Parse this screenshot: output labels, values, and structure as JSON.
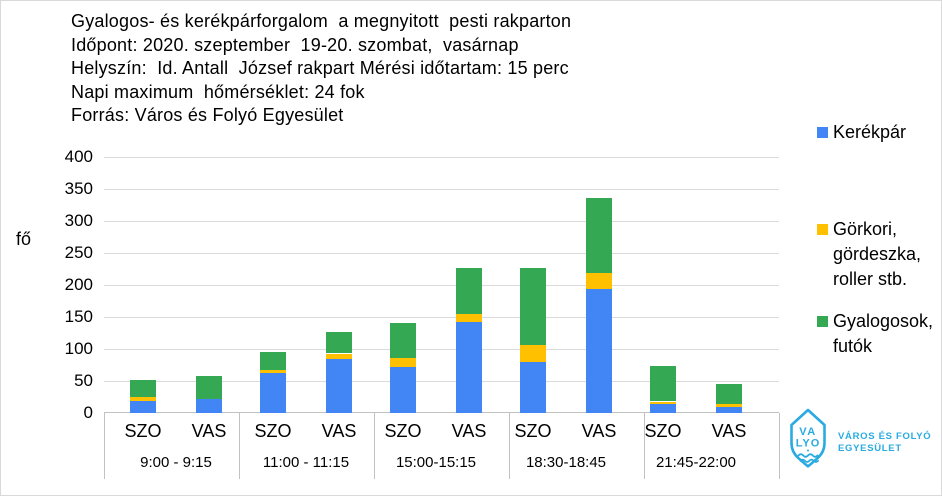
{
  "title_lines": [
    "Gyalogos- és kerékpárforgalom  a megnyitott  pesti rakparton",
    "Időpont: 2020. szeptember  19-20. szombat,  vasárnap",
    "Helyszín:  Id. Antall  József rakpart Mérési időtartam: 15 perc",
    "Napi maximum  hőmérséklet: 24 fok",
    "Forrás: Város és Folyó Egyesület"
  ],
  "y_axis_label": "fő",
  "legend": {
    "items": [
      {
        "color": "#4285F4",
        "label_lines": [
          "Kerékpár"
        ]
      },
      {
        "color": "#FFC000",
        "label_lines": [
          "Görkori,",
          "gördeszka,",
          "roller stb."
        ]
      },
      {
        "color": "#34A853",
        "label_lines": [
          "Gyalogosok,",
          "futók"
        ]
      }
    ]
  },
  "chart_data": {
    "type": "bar",
    "stacked": true,
    "title": "Gyalogos- és kerékpárforgalom a megnyitott pesti rakparton",
    "ylabel": "fő",
    "ylim": [
      0,
      400
    ],
    "yticks": [
      0,
      50,
      100,
      150,
      200,
      250,
      300,
      350,
      400
    ],
    "grid": true,
    "legend_position": "right",
    "groups": [
      "9:00 - 9:15",
      "11:00 - 11:15",
      "15:00-15:15",
      "18:30-18:45",
      "21:45-22:00"
    ],
    "bars_per_group": [
      "SZO",
      "VAS"
    ],
    "categories": [
      "SZO 9:00-9:15",
      "VAS 9:00-9:15",
      "SZO 11:00-11:15",
      "VAS 11:00-11:15",
      "SZO 15:00-15:15",
      "VAS 15:00-15:15",
      "SZO 18:30-18:45",
      "VAS 18:30-18:45",
      "SZO 21:45-22:00",
      "VAS 21:45-22:00"
    ],
    "series": [
      {
        "name": "Kerékpár",
        "color": "#4285F4",
        "values": [
          18,
          22,
          62,
          84,
          72,
          142,
          80,
          194,
          14,
          10
        ]
      },
      {
        "name": "Görkori, gördeszka, roller stb.",
        "color": "#FFC000",
        "values": [
          7,
          0,
          5,
          9,
          14,
          13,
          26,
          24,
          4,
          4
        ]
      },
      {
        "name": "Gyalogosok, futók",
        "color": "#34A853",
        "values": [
          27,
          36,
          28,
          34,
          54,
          71,
          120,
          118,
          55,
          31
        ]
      }
    ]
  },
  "logo": {
    "badge_line1": "VA",
    "badge_line2": "LYO",
    "text_line1": "VÁROS ÉS FOLYÓ",
    "text_line2": "EGYESÜLET",
    "color": "#29ABE2"
  },
  "colors": {
    "grid": "#dadada",
    "axis": "#c2c2c2",
    "text": "#000000"
  }
}
